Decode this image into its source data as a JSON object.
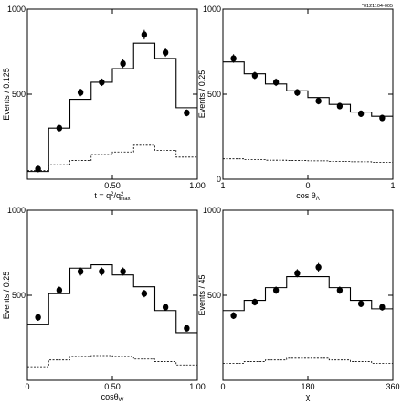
{
  "figure_tag": "*0121104-005",
  "chart_data": [
    {
      "type": "histogram",
      "xlabel_parts": [
        "t = q",
        "2",
        "/q",
        "2",
        "max"
      ],
      "ylabel": "Events / 0.125",
      "xlim": [
        0,
        1
      ],
      "ylim": [
        0,
        1000
      ],
      "x_ticks": [
        {
          "v": 0.5,
          "label": "0.50"
        },
        {
          "v": 1,
          "label": "1.00"
        }
      ],
      "y_ticks": [
        {
          "v": 500,
          "label": "500"
        },
        {
          "v": 1000,
          "label": "1000"
        }
      ],
      "bin_edges": [
        0,
        0.125,
        0.25,
        0.375,
        0.5,
        0.625,
        0.75,
        0.875,
        1
      ],
      "data_x": [
        0.0625,
        0.1875,
        0.3125,
        0.4375,
        0.5625,
        0.6875,
        0.8125,
        0.9375
      ],
      "data_y": [
        60,
        300,
        510,
        570,
        680,
        850,
        745,
        390
      ],
      "data_err": [
        15,
        18,
        22,
        22,
        25,
        28,
        25,
        20
      ],
      "fit_solid": [
        45,
        300,
        470,
        570,
        650,
        800,
        710,
        420
      ],
      "fit_dashed": [
        50,
        85,
        110,
        145,
        160,
        200,
        170,
        130
      ]
    },
    {
      "type": "histogram",
      "xlabel_parts": [
        "cos ",
        "θ",
        "Λ"
      ],
      "ylabel": "Events / 0.25",
      "xlim": [
        1,
        -1
      ],
      "ylim": [
        0,
        1000
      ],
      "x_ticks": [
        {
          "v": 1,
          "label": "1"
        },
        {
          "v": 0,
          "label": "0"
        },
        {
          "v": -1,
          "label": "1"
        }
      ],
      "y_ticks": [
        {
          "v": 0,
          "label": "0"
        },
        {
          "v": 500,
          "label": "500"
        },
        {
          "v": 1000,
          "label": "1000"
        }
      ],
      "bin_edges": [
        1,
        0.75,
        0.5,
        0.25,
        0,
        -0.25,
        -0.5,
        -0.75,
        -1
      ],
      "data_x": [
        0.875,
        0.625,
        0.375,
        0.125,
        -0.125,
        -0.375,
        -0.625,
        -0.875
      ],
      "data_y": [
        710,
        610,
        570,
        510,
        460,
        430,
        385,
        360
      ],
      "data_err": [
        25,
        22,
        22,
        20,
        20,
        18,
        18,
        18
      ],
      "fit_solid": [
        690,
        620,
        560,
        520,
        480,
        440,
        395,
        370
      ],
      "fit_dashed": [
        120,
        115,
        112,
        110,
        108,
        105,
        103,
        100
      ]
    },
    {
      "type": "histogram",
      "xlabel_parts": [
        "cos",
        "θ",
        "W"
      ],
      "ylabel": "Events / 0.25",
      "xlim": [
        0,
        1
      ],
      "ylim": [
        0,
        1000
      ],
      "x_ticks": [
        {
          "v": 0,
          "label": "0"
        },
        {
          "v": 0.5,
          "label": "0.50"
        },
        {
          "v": 1,
          "label": "1.00"
        }
      ],
      "y_ticks": [
        {
          "v": 500,
          "label": "500"
        },
        {
          "v": 1000,
          "label": "1000"
        }
      ],
      "bin_edges": [
        0,
        0.125,
        0.25,
        0.375,
        0.5,
        0.625,
        0.75,
        0.875,
        1
      ],
      "data_x": [
        0.0625,
        0.1875,
        0.3125,
        0.4375,
        0.5625,
        0.6875,
        0.8125,
        0.9375
      ],
      "data_y": [
        370,
        530,
        640,
        640,
        640,
        510,
        430,
        305
      ],
      "data_err": [
        20,
        22,
        24,
        24,
        24,
        22,
        20,
        18
      ],
      "fit_solid": [
        330,
        510,
        660,
        680,
        620,
        550,
        410,
        280
      ],
      "fit_dashed": [
        80,
        120,
        140,
        145,
        140,
        125,
        110,
        90
      ]
    },
    {
      "type": "histogram",
      "xlabel_parts": [
        "χ"
      ],
      "ylabel": "Events / 45",
      "xlim": [
        0,
        360
      ],
      "ylim": [
        0,
        1000
      ],
      "x_ticks": [
        {
          "v": 0,
          "label": "0"
        },
        {
          "v": 180,
          "label": "180"
        },
        {
          "v": 360,
          "label": "360"
        }
      ],
      "y_ticks": [
        {
          "v": 500,
          "label": "500"
        },
        {
          "v": 1000,
          "label": "1000"
        }
      ],
      "bin_edges": [
        0,
        45,
        90,
        135,
        180,
        225,
        270,
        315,
        360
      ],
      "data_x": [
        22.5,
        67.5,
        112.5,
        157.5,
        202.5,
        247.5,
        292.5,
        337.5
      ],
      "data_y": [
        380,
        460,
        530,
        630,
        665,
        530,
        450,
        430
      ],
      "data_err": [
        20,
        20,
        22,
        24,
        25,
        22,
        20,
        20
      ],
      "fit_solid": [
        410,
        470,
        545,
        610,
        610,
        545,
        470,
        420
      ],
      "fit_dashed": [
        100,
        110,
        120,
        130,
        130,
        120,
        110,
        100
      ]
    }
  ]
}
